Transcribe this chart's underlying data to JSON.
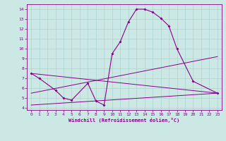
{
  "xlabel": "Windchill (Refroidissement éolien,°C)",
  "background_color": "#cce8e4",
  "grid_color": "#aad4d0",
  "line_color": "#880088",
  "xlim": [
    -0.5,
    23.5
  ],
  "ylim": [
    3.8,
    14.5
  ],
  "xticks": [
    0,
    1,
    2,
    3,
    4,
    5,
    6,
    7,
    8,
    9,
    10,
    11,
    12,
    13,
    14,
    15,
    16,
    17,
    18,
    19,
    20,
    21,
    22,
    23
  ],
  "yticks": [
    4,
    5,
    6,
    7,
    8,
    9,
    10,
    11,
    12,
    13,
    14
  ],
  "main_curve": {
    "x": [
      0,
      1,
      3,
      4,
      5,
      7,
      8,
      9,
      10,
      11,
      12,
      13,
      14,
      15,
      16,
      17,
      18,
      20,
      23
    ],
    "y": [
      7.5,
      7.0,
      5.8,
      5.0,
      4.8,
      6.5,
      4.7,
      4.3,
      9.5,
      10.7,
      12.7,
      14.0,
      14.0,
      13.7,
      13.1,
      12.3,
      10.0,
      6.7,
      5.5
    ]
  },
  "line1": {
    "x": [
      0,
      23
    ],
    "y": [
      7.5,
      5.5
    ]
  },
  "line2": {
    "x": [
      0,
      23
    ],
    "y": [
      5.5,
      9.2
    ]
  },
  "line3": {
    "x": [
      0,
      23
    ],
    "y": [
      4.3,
      5.5
    ]
  }
}
